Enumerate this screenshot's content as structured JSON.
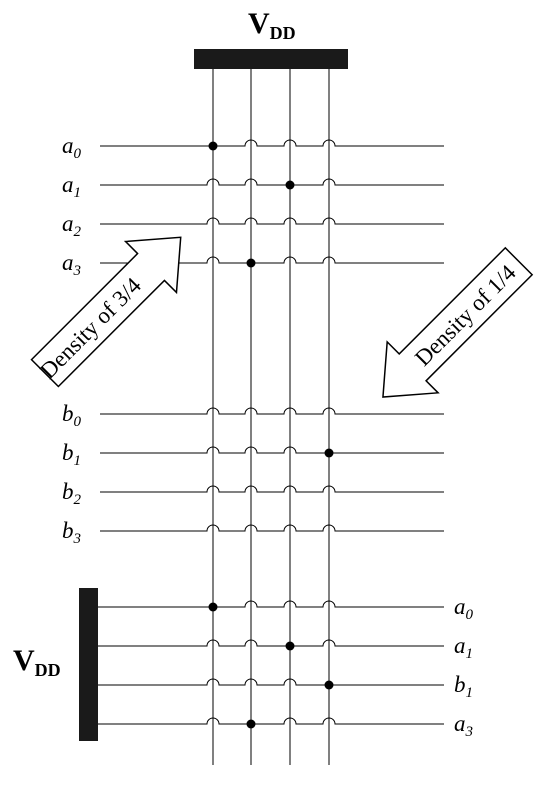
{
  "supplies": {
    "top_main": "V",
    "top_sub": "DD",
    "left_main": "V",
    "left_sub": "DD"
  },
  "groups": {
    "a": [
      {
        "base": "a",
        "sub": "0"
      },
      {
        "base": "a",
        "sub": "1"
      },
      {
        "base": "a",
        "sub": "2"
      },
      {
        "base": "a",
        "sub": "3"
      }
    ],
    "b": [
      {
        "base": "b",
        "sub": "0"
      },
      {
        "base": "b",
        "sub": "1"
      },
      {
        "base": "b",
        "sub": "2"
      },
      {
        "base": "b",
        "sub": "3"
      }
    ],
    "selected": [
      {
        "base": "a",
        "sub": "0"
      },
      {
        "base": "a",
        "sub": "1"
      },
      {
        "base": "b",
        "sub": "1"
      },
      {
        "base": "a",
        "sub": "3"
      }
    ]
  },
  "arrows": {
    "left": "Density of 3/4",
    "right": "Density of 1/4"
  },
  "connections": {
    "a": [
      0,
      2,
      null,
      1
    ],
    "b": [
      null,
      3,
      null,
      null
    ],
    "selected": [
      0,
      2,
      3,
      1
    ]
  }
}
